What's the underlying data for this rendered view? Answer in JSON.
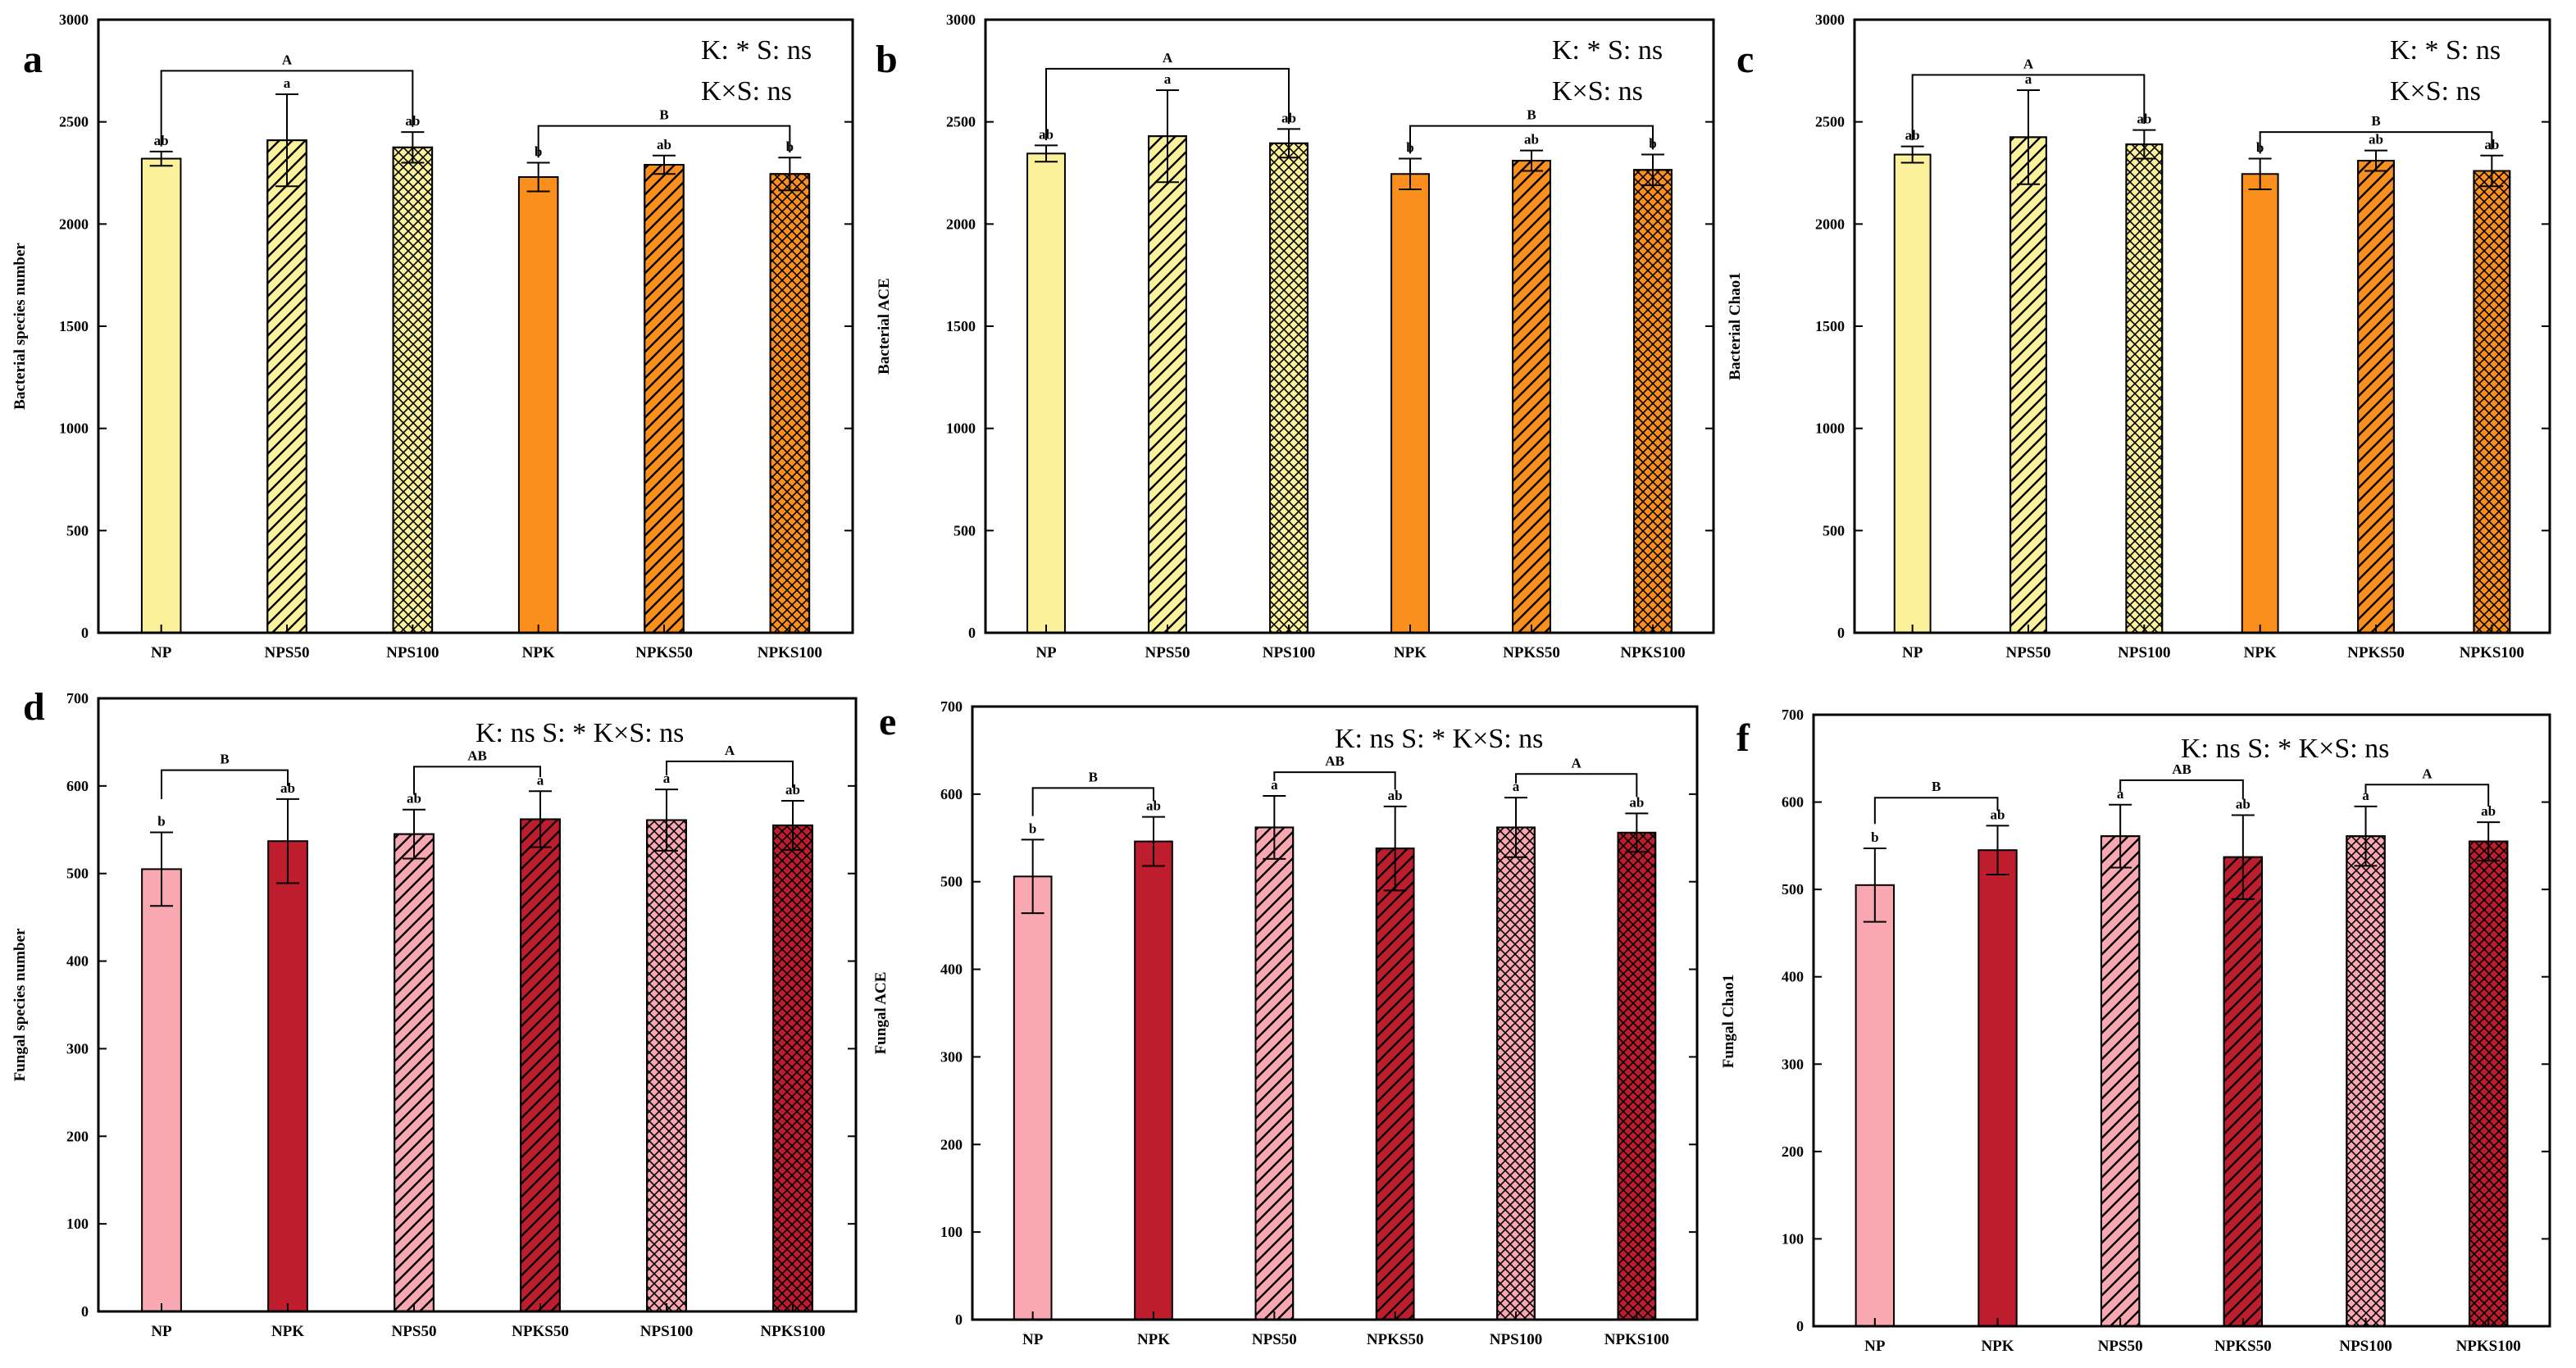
{
  "figure": {
    "colors": {
      "np_bact": "#fbf19a",
      "npk_bact": "#fb8f1e",
      "np_fung": "#f9a7b1",
      "npk_fung": "#be1d2d",
      "frame": "#000000",
      "background": "#ffffff"
    }
  },
  "chart_data": [
    {
      "panel": "a",
      "type": "bar",
      "ylabel": "Bacterial species number",
      "xlabel": "",
      "ylim": [
        0,
        3000
      ],
      "yticks": [
        0,
        500,
        1000,
        1500,
        2000,
        2500,
        3000
      ],
      "stats_line1": "K: *  S: ns",
      "stats_line2": "K×S: ns",
      "categories": [
        "NP",
        "NPS50",
        "NPS100",
        "NPK",
        "NPKS50",
        "NPKS100"
      ],
      "values": [
        2320,
        2410,
        2375,
        2230,
        2290,
        2245
      ],
      "errors": [
        35,
        225,
        75,
        70,
        45,
        80
      ],
      "letters": [
        "ab",
        "a",
        "ab",
        "b",
        "ab",
        "b"
      ],
      "fills": [
        "np",
        "np",
        "np",
        "npk",
        "npk",
        "npk"
      ],
      "patterns": [
        "none",
        "diag",
        "cross",
        "none",
        "diag",
        "cross"
      ],
      "brackets": [
        {
          "label": "A",
          "from": 0,
          "to": 2,
          "y": 2750,
          "drop_to": [
            2380,
            2475
          ]
        },
        {
          "label": "B",
          "from": 3,
          "to": 5,
          "y": 2480,
          "drop_to": [
            2325,
            2350
          ]
        }
      ]
    },
    {
      "panel": "b",
      "type": "bar",
      "ylabel": "Bacterial ACE",
      "xlabel": "",
      "ylim": [
        0,
        3000
      ],
      "yticks": [
        0,
        500,
        1000,
        1500,
        2000,
        2500,
        3000
      ],
      "stats_line1": "K: *  S: ns",
      "stats_line2": "K×S: ns",
      "categories": [
        "NP",
        "NPS50",
        "NPS100",
        "NPK",
        "NPKS50",
        "NPKS100"
      ],
      "values": [
        2345,
        2430,
        2395,
        2245,
        2310,
        2265
      ],
      "errors": [
        40,
        225,
        70,
        75,
        50,
        75
      ],
      "letters": [
        "ab",
        "a",
        "ab",
        "b",
        "ab",
        "b"
      ],
      "fills": [
        "np",
        "np",
        "np",
        "npk",
        "npk",
        "npk"
      ],
      "patterns": [
        "none",
        "diag",
        "cross",
        "none",
        "diag",
        "cross"
      ],
      "brackets": [
        {
          "label": "A",
          "from": 0,
          "to": 2,
          "y": 2760,
          "drop_to": [
            2410,
            2490
          ]
        },
        {
          "label": "B",
          "from": 3,
          "to": 5,
          "y": 2480,
          "drop_to": [
            2345,
            2365
          ]
        }
      ]
    },
    {
      "panel": "c",
      "type": "bar",
      "ylabel": "Bacterial Chao1",
      "xlabel": "",
      "ylim": [
        0,
        3000
      ],
      "yticks": [
        0,
        500,
        1000,
        1500,
        2000,
        2500,
        3000
      ],
      "stats_line1": "K: *  S: ns",
      "stats_line2": "K×S: ns",
      "categories": [
        "NP",
        "NPS50",
        "NPS100",
        "NPK",
        "NPKS50",
        "NPKS100"
      ],
      "values": [
        2340,
        2425,
        2390,
        2245,
        2310,
        2260
      ],
      "errors": [
        40,
        230,
        70,
        75,
        50,
        75
      ],
      "letters": [
        "ab",
        "a",
        "ab",
        "b",
        "ab",
        "ab"
      ],
      "fills": [
        "np",
        "np",
        "np",
        "npk",
        "npk",
        "npk"
      ],
      "patterns": [
        "none",
        "diag",
        "cross",
        "none",
        "diag",
        "cross"
      ],
      "brackets": [
        {
          "label": "A",
          "from": 0,
          "to": 2,
          "y": 2730,
          "drop_to": [
            2410,
            2490
          ]
        },
        {
          "label": "B",
          "from": 3,
          "to": 5,
          "y": 2450,
          "drop_to": [
            2345,
            2365
          ]
        }
      ]
    },
    {
      "panel": "d",
      "type": "bar",
      "ylabel": "Fungal species number",
      "xlabel": "",
      "ylim": [
        0,
        700
      ],
      "yticks": [
        0,
        100,
        200,
        300,
        400,
        500,
        600,
        700
      ],
      "stats_line1": "K: ns   S: *  K×S: ns",
      "stats_line2": "",
      "categories": [
        "NP",
        "NPK",
        "NPS50",
        "NPKS50",
        "NPS100",
        "NPKS100"
      ],
      "values": [
        505,
        537,
        545,
        562,
        561,
        555
      ],
      "errors": [
        42,
        48,
        28,
        32,
        35,
        28
      ],
      "letters": [
        "b",
        "ab",
        "ab",
        "a",
        "a",
        "ab"
      ],
      "fills": [
        "np",
        "npk",
        "np",
        "npk",
        "np",
        "npk"
      ],
      "patterns": [
        "none",
        "none",
        "diag",
        "diag",
        "cross",
        "cross"
      ],
      "brackets": [
        {
          "label": "B",
          "from": 0,
          "to": 1,
          "y": 618,
          "drop_to": [
            585,
            600
          ]
        },
        {
          "label": "AB",
          "from": 2,
          "to": 3,
          "y": 622,
          "drop_to": [
            590,
            610
          ]
        },
        {
          "label": "A",
          "from": 4,
          "to": 5,
          "y": 628,
          "drop_to": [
            612,
            598
          ]
        }
      ]
    },
    {
      "panel": "e",
      "type": "bar",
      "ylabel": "Fungal ACE",
      "xlabel": "",
      "ylim": [
        0,
        700
      ],
      "yticks": [
        0,
        100,
        200,
        300,
        400,
        500,
        600,
        700
      ],
      "stats_line1": "K: ns   S: *  K×S: ns",
      "stats_line2": "",
      "categories": [
        "NP",
        "NPK",
        "NPS50",
        "NPKS50",
        "NPS100",
        "NPKS100"
      ],
      "values": [
        506,
        546,
        562,
        538,
        562,
        556
      ],
      "errors": [
        42,
        28,
        36,
        48,
        34,
        22
      ],
      "letters": [
        "b",
        "ab",
        "a",
        "ab",
        "a",
        "ab"
      ],
      "fills": [
        "np",
        "npk",
        "np",
        "npk",
        "np",
        "npk"
      ],
      "patterns": [
        "none",
        "none",
        "diag",
        "diag",
        "cross",
        "cross"
      ],
      "brackets": [
        {
          "label": "B",
          "from": 0,
          "to": 1,
          "y": 607,
          "drop_to": [
            575,
            592
          ]
        },
        {
          "label": "AB",
          "from": 2,
          "to": 3,
          "y": 625,
          "drop_to": [
            615,
            605
          ]
        },
        {
          "label": "A",
          "from": 4,
          "to": 5,
          "y": 623,
          "drop_to": [
            612,
            597
          ]
        }
      ]
    },
    {
      "panel": "f",
      "type": "bar",
      "ylabel": "Fungal Chao1",
      "xlabel": "",
      "ylim": [
        0,
        700
      ],
      "yticks": [
        0,
        100,
        200,
        300,
        400,
        500,
        600,
        700
      ],
      "stats_line1": "K: ns   S: *  K×S: ns",
      "stats_line2": "",
      "categories": [
        "NP",
        "NPK",
        "NPS50",
        "NPKS50",
        "NPS100",
        "NPKS100"
      ],
      "values": [
        505,
        545,
        561,
        537,
        561,
        555
      ],
      "errors": [
        42,
        28,
        36,
        48,
        34,
        22
      ],
      "letters": [
        "b",
        "ab",
        "a",
        "ab",
        "a",
        "ab"
      ],
      "fills": [
        "np",
        "npk",
        "np",
        "npk",
        "np",
        "npk"
      ],
      "patterns": [
        "none",
        "none",
        "diag",
        "diag",
        "cross",
        "cross"
      ],
      "brackets": [
        {
          "label": "B",
          "from": 0,
          "to": 1,
          "y": 605,
          "drop_to": [
            575,
            590
          ]
        },
        {
          "label": "AB",
          "from": 2,
          "to": 3,
          "y": 625,
          "drop_to": [
            612,
            603
          ]
        },
        {
          "label": "A",
          "from": 4,
          "to": 5,
          "y": 620,
          "drop_to": [
            610,
            595
          ]
        }
      ]
    }
  ]
}
